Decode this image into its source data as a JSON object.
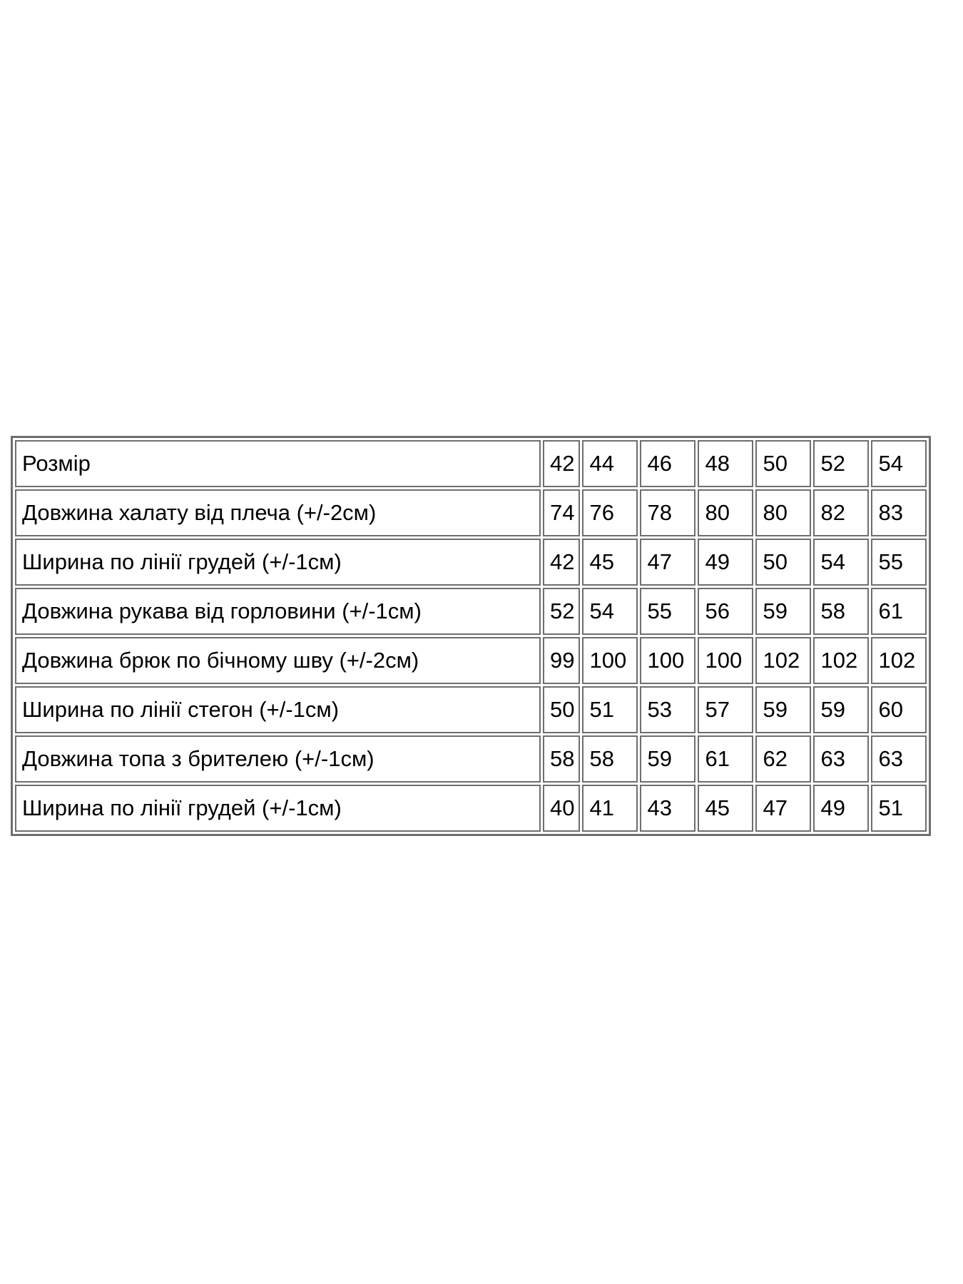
{
  "page": {
    "background_color": "#ffffff",
    "text_color": "#000000",
    "border_color": "#6e6e6e"
  },
  "size_chart": {
    "rows": [
      {
        "label": "Розмір",
        "values": [
          "42",
          "44",
          "46",
          "48",
          "50",
          "52",
          "54"
        ]
      },
      {
        "label": "Довжина халату від плеча (+/-2см)",
        "values": [
          "74",
          "76",
          "78",
          "80",
          "80",
          "82",
          "83"
        ]
      },
      {
        "label": "Ширина по лінії грудей (+/-1см)",
        "values": [
          "42",
          "45",
          "47",
          "49",
          "50",
          "54",
          "55"
        ]
      },
      {
        "label": "Довжина рукава від горловини (+/-1см)",
        "values": [
          "52",
          "54",
          "55",
          "56",
          "59",
          "58",
          "61"
        ]
      },
      {
        "label": "Довжина брюк по бічному шву (+/-2см)",
        "values": [
          "99",
          "100",
          "100",
          "100",
          "102",
          "102",
          "102"
        ]
      },
      {
        "label": "Ширина по лінії стегон (+/-1см)",
        "values": [
          "50",
          "51",
          "53",
          "57",
          "59",
          "59",
          "60"
        ]
      },
      {
        "label": "Довжина топа з брителею (+/-1см)",
        "values": [
          "58",
          "58",
          "59",
          "61",
          "62",
          "63",
          "63"
        ]
      },
      {
        "label": "Ширина по лінії грудей (+/-1см)",
        "values": [
          "40",
          "41",
          "43",
          "45",
          "47",
          "49",
          "51"
        ]
      }
    ]
  },
  "chart_data": {
    "type": "table",
    "columns": [
      "42",
      "44",
      "46",
      "48",
      "50",
      "52",
      "54"
    ],
    "rows": [
      {
        "label": "Довжина халату від плеча (+/-2см)",
        "values": [
          74,
          76,
          78,
          80,
          80,
          82,
          83
        ]
      },
      {
        "label": "Ширина по лінії грудей (+/-1см)",
        "values": [
          42,
          45,
          47,
          49,
          50,
          54,
          55
        ]
      },
      {
        "label": "Довжина рукава від горловини (+/-1см)",
        "values": [
          52,
          54,
          55,
          56,
          59,
          58,
          61
        ]
      },
      {
        "label": "Довжина брюк по бічному шву (+/-2см)",
        "values": [
          99,
          100,
          100,
          100,
          102,
          102,
          102
        ]
      },
      {
        "label": "Ширина по лінії стегон (+/-1см)",
        "values": [
          50,
          51,
          53,
          57,
          59,
          59,
          60
        ]
      },
      {
        "label": "Довжина топа з брителею (+/-1см)",
        "values": [
          58,
          58,
          59,
          61,
          62,
          63,
          63
        ]
      },
      {
        "label": "Ширина по лінії грудей (+/-1см)",
        "values": [
          40,
          41,
          43,
          45,
          47,
          49,
          51
        ]
      }
    ]
  }
}
